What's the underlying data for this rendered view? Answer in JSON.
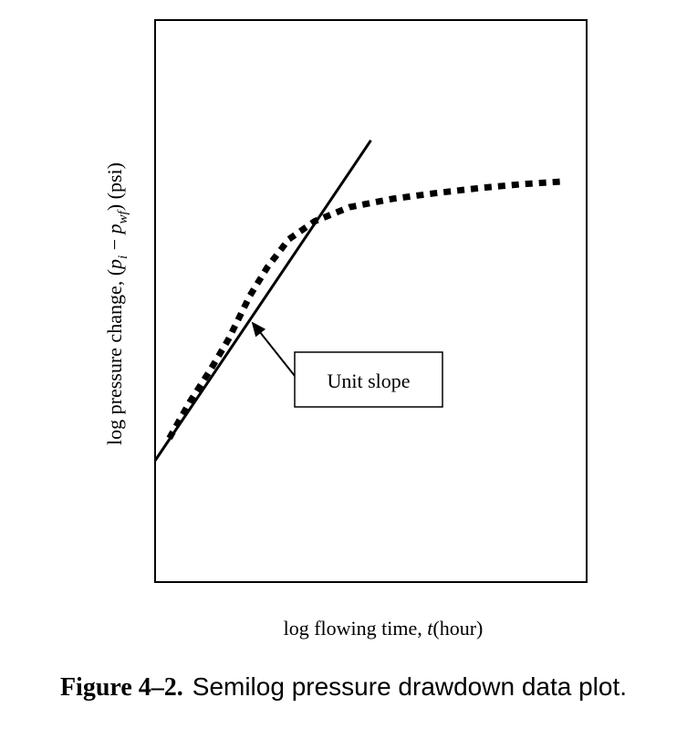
{
  "chart_data": {
    "type": "line",
    "title": "",
    "xlabel": "log flowing time, t (hour)",
    "ylabel": "log pressure change, (p_i − p_wf) (psi)",
    "xlim": [
      0,
      1
    ],
    "ylim": [
      0,
      1
    ],
    "grid": false,
    "ticks": false,
    "series": [
      {
        "style": "solid",
        "points": [
          [
            0.0,
            0.216
          ],
          [
            0.5,
            0.786
          ]
        ]
      },
      {
        "style": "dotted",
        "points": [
          [
            0.033,
            0.256
          ],
          [
            0.08,
            0.32
          ],
          [
            0.13,
            0.38
          ],
          [
            0.17,
            0.432
          ],
          [
            0.22,
            0.51
          ],
          [
            0.26,
            0.56
          ],
          [
            0.31,
            0.61
          ],
          [
            0.37,
            0.642
          ],
          [
            0.45,
            0.667
          ],
          [
            0.55,
            0.682
          ],
          [
            0.65,
            0.692
          ],
          [
            0.75,
            0.701
          ],
          [
            0.85,
            0.708
          ],
          [
            0.95,
            0.713
          ]
        ]
      }
    ],
    "annotations": [
      {
        "text": "Unit slope",
        "target": [
          0.215,
          0.47
        ]
      }
    ]
  },
  "labels": {
    "ylabel_prefix": "log pressure change, (",
    "ylabel_p": "p",
    "ylabel_sub_i": "i",
    "ylabel_minus": " − ",
    "ylabel_p2": "p",
    "ylabel_sub_wf": "wf",
    "ylabel_suffix": ") (psi)",
    "xlabel_prefix": "log flowing time, ",
    "xlabel_t": "t",
    "xlabel_suffix": "(hour)",
    "annotation": "Unit slope"
  },
  "caption": {
    "number": "Figure 4–2.",
    "text": "Semilog pressure drawdown data plot."
  }
}
